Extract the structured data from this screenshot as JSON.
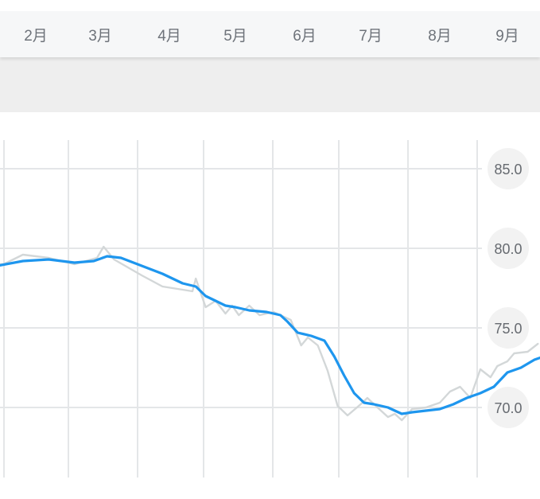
{
  "months": [
    "2月",
    "3月",
    "4月",
    "5月",
    "6月",
    "7月",
    "8月",
    "9月"
  ],
  "colors": {
    "trend": "#1e96ee",
    "raw": "#d3d7d8",
    "grid": "#e4e6e8",
    "badge": "#f2f2f2",
    "label": "#666a70"
  },
  "chart_data": {
    "type": "line",
    "x_unit": "month index (2月 = 2)",
    "ylim": [
      67.0,
      87.0
    ],
    "y_ticks": [
      {
        "value": 85.0,
        "label": "85.0"
      },
      {
        "value": 80.0,
        "label": "80.0"
      },
      {
        "value": 75.0,
        "label": "75.0"
      },
      {
        "value": 70.0,
        "label": "70.0"
      }
    ],
    "series": [
      {
        "role": "raw",
        "points": [
          [
            1.0,
            79.0
          ],
          [
            1.5,
            79.0
          ],
          [
            1.8,
            79.6
          ],
          [
            2.2,
            79.4
          ],
          [
            2.6,
            79.0
          ],
          [
            2.95,
            79.4
          ],
          [
            3.05,
            80.1
          ],
          [
            3.2,
            79.3
          ],
          [
            3.6,
            78.3
          ],
          [
            3.9,
            77.6
          ],
          [
            4.2,
            77.4
          ],
          [
            4.35,
            77.3
          ],
          [
            4.4,
            78.1
          ],
          [
            4.55,
            76.3
          ],
          [
            4.7,
            76.7
          ],
          [
            4.85,
            75.9
          ],
          [
            4.95,
            76.4
          ],
          [
            5.05,
            75.8
          ],
          [
            5.2,
            76.4
          ],
          [
            5.35,
            75.8
          ],
          [
            5.55,
            76.0
          ],
          [
            5.8,
            75.5
          ],
          [
            5.95,
            73.9
          ],
          [
            6.05,
            74.4
          ],
          [
            6.2,
            73.9
          ],
          [
            6.35,
            72.3
          ],
          [
            6.5,
            70.1
          ],
          [
            6.65,
            69.5
          ],
          [
            6.85,
            70.2
          ],
          [
            6.95,
            70.6
          ],
          [
            7.1,
            70.0
          ],
          [
            7.25,
            69.4
          ],
          [
            7.35,
            69.6
          ],
          [
            7.45,
            69.2
          ],
          [
            7.6,
            69.9
          ],
          [
            7.8,
            70.0
          ],
          [
            8.0,
            70.3
          ],
          [
            8.15,
            71.0
          ],
          [
            8.3,
            71.3
          ],
          [
            8.45,
            70.6
          ],
          [
            8.6,
            72.4
          ],
          [
            8.75,
            71.9
          ],
          [
            8.85,
            72.6
          ],
          [
            9.0,
            72.9
          ],
          [
            9.1,
            73.4
          ],
          [
            9.3,
            73.5
          ],
          [
            9.45,
            74.0
          ]
        ]
      },
      {
        "role": "trend",
        "points": [
          [
            1.0,
            79.0
          ],
          [
            1.4,
            78.9
          ],
          [
            1.8,
            79.2
          ],
          [
            2.2,
            79.3
          ],
          [
            2.6,
            79.1
          ],
          [
            2.9,
            79.2
          ],
          [
            3.1,
            79.5
          ],
          [
            3.3,
            79.4
          ],
          [
            3.6,
            78.9
          ],
          [
            3.9,
            78.4
          ],
          [
            4.2,
            77.8
          ],
          [
            4.4,
            77.6
          ],
          [
            4.55,
            77.0
          ],
          [
            4.7,
            76.7
          ],
          [
            4.85,
            76.4
          ],
          [
            5.0,
            76.3
          ],
          [
            5.2,
            76.1
          ],
          [
            5.45,
            76.0
          ],
          [
            5.65,
            75.8
          ],
          [
            5.75,
            75.4
          ],
          [
            5.9,
            74.7
          ],
          [
            6.1,
            74.5
          ],
          [
            6.3,
            74.2
          ],
          [
            6.45,
            73.2
          ],
          [
            6.6,
            72.0
          ],
          [
            6.75,
            70.9
          ],
          [
            6.9,
            70.3
          ],
          [
            7.05,
            70.2
          ],
          [
            7.25,
            70.0
          ],
          [
            7.45,
            69.6
          ],
          [
            7.6,
            69.7
          ],
          [
            7.8,
            69.8
          ],
          [
            8.0,
            69.9
          ],
          [
            8.2,
            70.2
          ],
          [
            8.4,
            70.6
          ],
          [
            8.6,
            70.9
          ],
          [
            8.8,
            71.3
          ],
          [
            9.0,
            72.2
          ],
          [
            9.2,
            72.5
          ],
          [
            9.4,
            73.0
          ],
          [
            9.6,
            73.3
          ],
          [
            9.85,
            73.6
          ]
        ]
      }
    ]
  }
}
